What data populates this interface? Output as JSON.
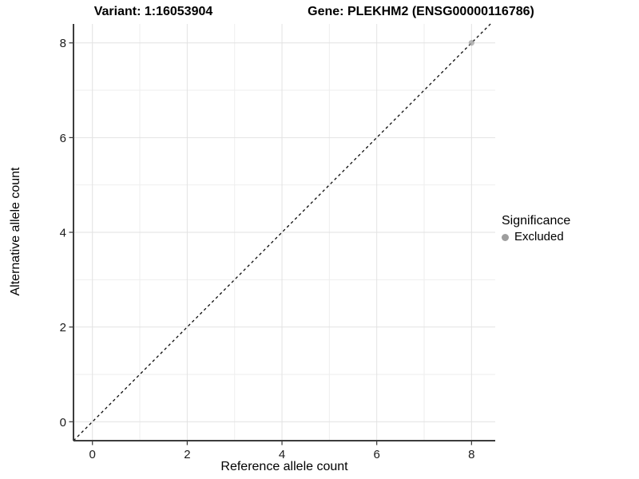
{
  "figure": {
    "title_variant": "Variant: 1:16053904",
    "title_gene": "Gene: PLEKHM2 (ENSG00000116786)"
  },
  "legend": {
    "title": "Significance",
    "items": [
      {
        "label": "Excluded",
        "color": "#9e9e9e"
      }
    ]
  },
  "colors": {
    "background": "#ffffff",
    "grid_major": "#e2e2e2",
    "grid_minor": "#eeeeee",
    "axis_line": "#3c3c3c",
    "tick_mark": "#333333",
    "tick_label": "#1a1a1a",
    "identity_line": "#0a0a0a",
    "point": "#9e9e9e"
  },
  "chart_data": {
    "type": "scatter",
    "title": "Variant: 1:16053904    Gene: PLEKHM2 (ENSG00000116786)",
    "xlabel": "Reference allele count",
    "ylabel": "Alternative allele count",
    "xlim": [
      -0.4,
      8.5
    ],
    "ylim": [
      -0.4,
      8.4
    ],
    "x_ticks": [
      0,
      2,
      4,
      6,
      8
    ],
    "y_ticks": [
      0,
      2,
      4,
      6,
      8
    ],
    "x_minor_ticks": [
      1,
      3,
      5,
      7
    ],
    "y_minor_ticks": [
      1,
      3,
      5,
      7
    ],
    "grid": true,
    "legend_position": "right",
    "legend_title": "Significance",
    "series": [
      {
        "name": "Excluded",
        "type": "scatter",
        "color": "#9e9e9e",
        "opacity": 0.72,
        "point_radius": 3.6,
        "points": [
          {
            "x": 8,
            "y": 8
          }
        ]
      }
    ],
    "reference_line": {
      "type": "identity",
      "style": "dashed",
      "color": "#0a0a0a",
      "from": [
        -0.4,
        -0.4
      ],
      "to": [
        8.4,
        8.4
      ]
    }
  }
}
